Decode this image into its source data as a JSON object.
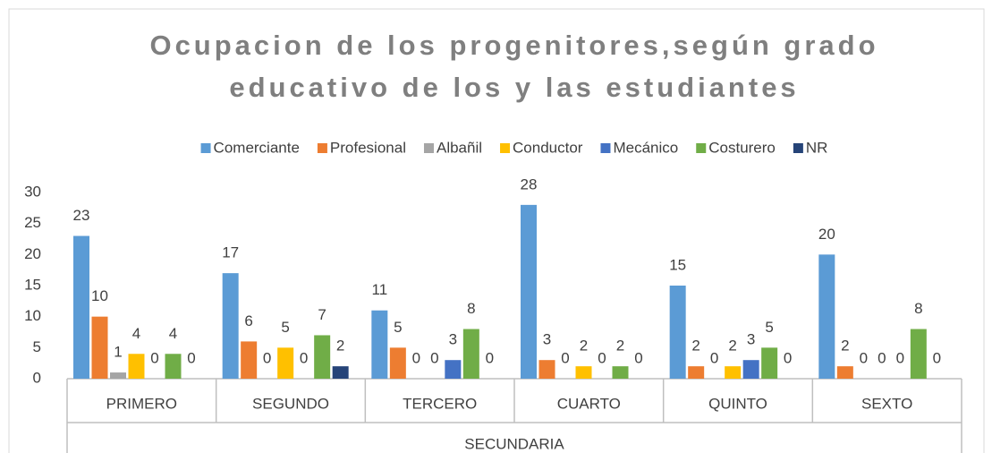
{
  "chart_data": {
    "type": "bar",
    "title": [
      "Ocupacion de los progenitores,según grado",
      "educativo de los y las estudiantes"
    ],
    "group_label": "SECUNDARIA",
    "categories": [
      "PRIMERO",
      "SEGUNDO",
      "TERCERO",
      "CUARTO",
      "QUINTO",
      "SEXTO"
    ],
    "series": [
      {
        "name": "Comerciante",
        "color": "#5b9bd5",
        "values": [
          23,
          17,
          11,
          28,
          15,
          20
        ]
      },
      {
        "name": "Profesional",
        "color": "#ed7d31",
        "values": [
          10,
          6,
          5,
          3,
          2,
          2
        ]
      },
      {
        "name": "Albañil",
        "color": "#a5a5a5",
        "values": [
          1,
          0,
          0,
          0,
          0,
          0
        ]
      },
      {
        "name": "Conductor",
        "color": "#ffc000",
        "values": [
          4,
          5,
          0,
          2,
          2,
          0
        ]
      },
      {
        "name": "Mecánico",
        "color": "#4472c4",
        "values": [
          0,
          0,
          3,
          0,
          3,
          0
        ]
      },
      {
        "name": "Costurero",
        "color": "#70ad47",
        "values": [
          4,
          7,
          8,
          2,
          5,
          8
        ]
      },
      {
        "name": "NR",
        "color": "#264478",
        "values": [
          0,
          2,
          0,
          0,
          0,
          0
        ]
      }
    ],
    "ylim": [
      0,
      30
    ],
    "yticks": [
      0,
      5,
      10,
      15,
      20,
      25,
      30
    ],
    "grid": false,
    "legend": "top"
  }
}
